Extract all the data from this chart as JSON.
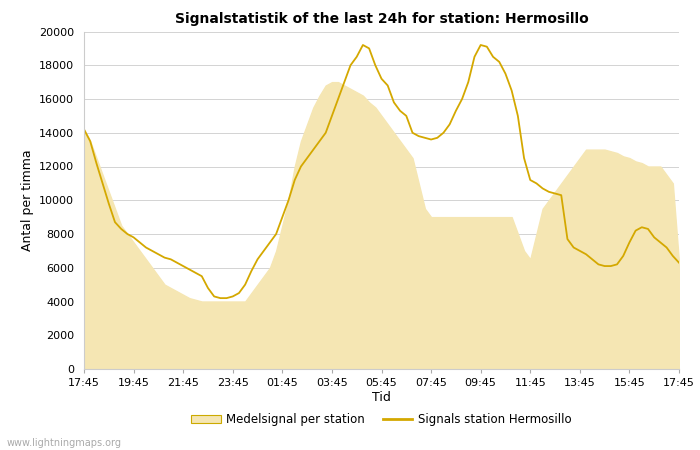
{
  "title": "Signalstatistik of the last 24h for station: Hermosillo",
  "xlabel": "Tid",
  "ylabel": "Antal per timma",
  "watermark": "www.lightningmaps.org",
  "legend_fill_label": "Medelsignal per station",
  "legend_line_label": "Signals station Hermosillo",
  "x_ticks": [
    "17:45",
    "19:45",
    "21:45",
    "23:45",
    "01:45",
    "03:45",
    "05:45",
    "07:45",
    "09:45",
    "11:45",
    "13:45",
    "15:45",
    "17:45"
  ],
  "ylim": [
    0,
    20000
  ],
  "yticks": [
    0,
    2000,
    4000,
    6000,
    8000,
    10000,
    12000,
    14000,
    16000,
    18000,
    20000
  ],
  "fill_color": "#f5e6b3",
  "line_color": "#d4a800",
  "background_color": "#ffffff",
  "n_points": 97,
  "line_y": [
    14200,
    13500,
    12200,
    11000,
    9800,
    8700,
    8300,
    8000,
    7800,
    7500,
    7200,
    7000,
    6800,
    6600,
    6500,
    6300,
    6100,
    5900,
    5700,
    5500,
    4800,
    4300,
    4200,
    4200,
    4300,
    4500,
    5000,
    5800,
    6500,
    7000,
    7500,
    8000,
    9000,
    10000,
    11200,
    12000,
    12500,
    13000,
    13500,
    14000,
    15000,
    16000,
    17000,
    18000,
    18500,
    19200,
    19000,
    18000,
    17200,
    16800,
    15800,
    15300,
    15000,
    14000,
    13800,
    13700,
    13600,
    13700,
    14000,
    14500,
    15300,
    16000,
    17000,
    18500,
    19200,
    19100,
    18500,
    18200,
    17500,
    16500,
    15000,
    12500,
    11200,
    11000,
    10700,
    10500,
    10400,
    10300,
    7700,
    7200,
    7000,
    6800,
    6500,
    6200,
    6100,
    6100,
    6200,
    6700,
    7500,
    8200,
    8400,
    8300,
    7800,
    7500,
    7200,
    6700,
    6300
  ],
  "fill_y": [
    14200,
    13500,
    12500,
    11500,
    10500,
    9500,
    8500,
    8000,
    7500,
    7000,
    6500,
    6000,
    5500,
    5000,
    4800,
    4600,
    4400,
    4200,
    4100,
    4000,
    4000,
    4000,
    4000,
    4000,
    4000,
    4000,
    4000,
    4500,
    5000,
    5500,
    6000,
    7000,
    8500,
    10000,
    12000,
    13500,
    14500,
    15500,
    16200,
    16800,
    17000,
    17000,
    16800,
    16600,
    16400,
    16200,
    15800,
    15500,
    15000,
    14500,
    14000,
    13500,
    13000,
    12500,
    11000,
    9500,
    9000,
    9000,
    9000,
    9000,
    9000,
    9000,
    9000,
    9000,
    9000,
    9000,
    9000,
    9000,
    9000,
    9000,
    8000,
    7000,
    6500,
    8000,
    9500,
    10000,
    10500,
    11000,
    11500,
    12000,
    12500,
    13000,
    13000,
    13000,
    13000,
    12900,
    12800,
    12600,
    12500,
    12300,
    12200,
    12000,
    12000,
    12000,
    11500,
    11000,
    6300
  ]
}
